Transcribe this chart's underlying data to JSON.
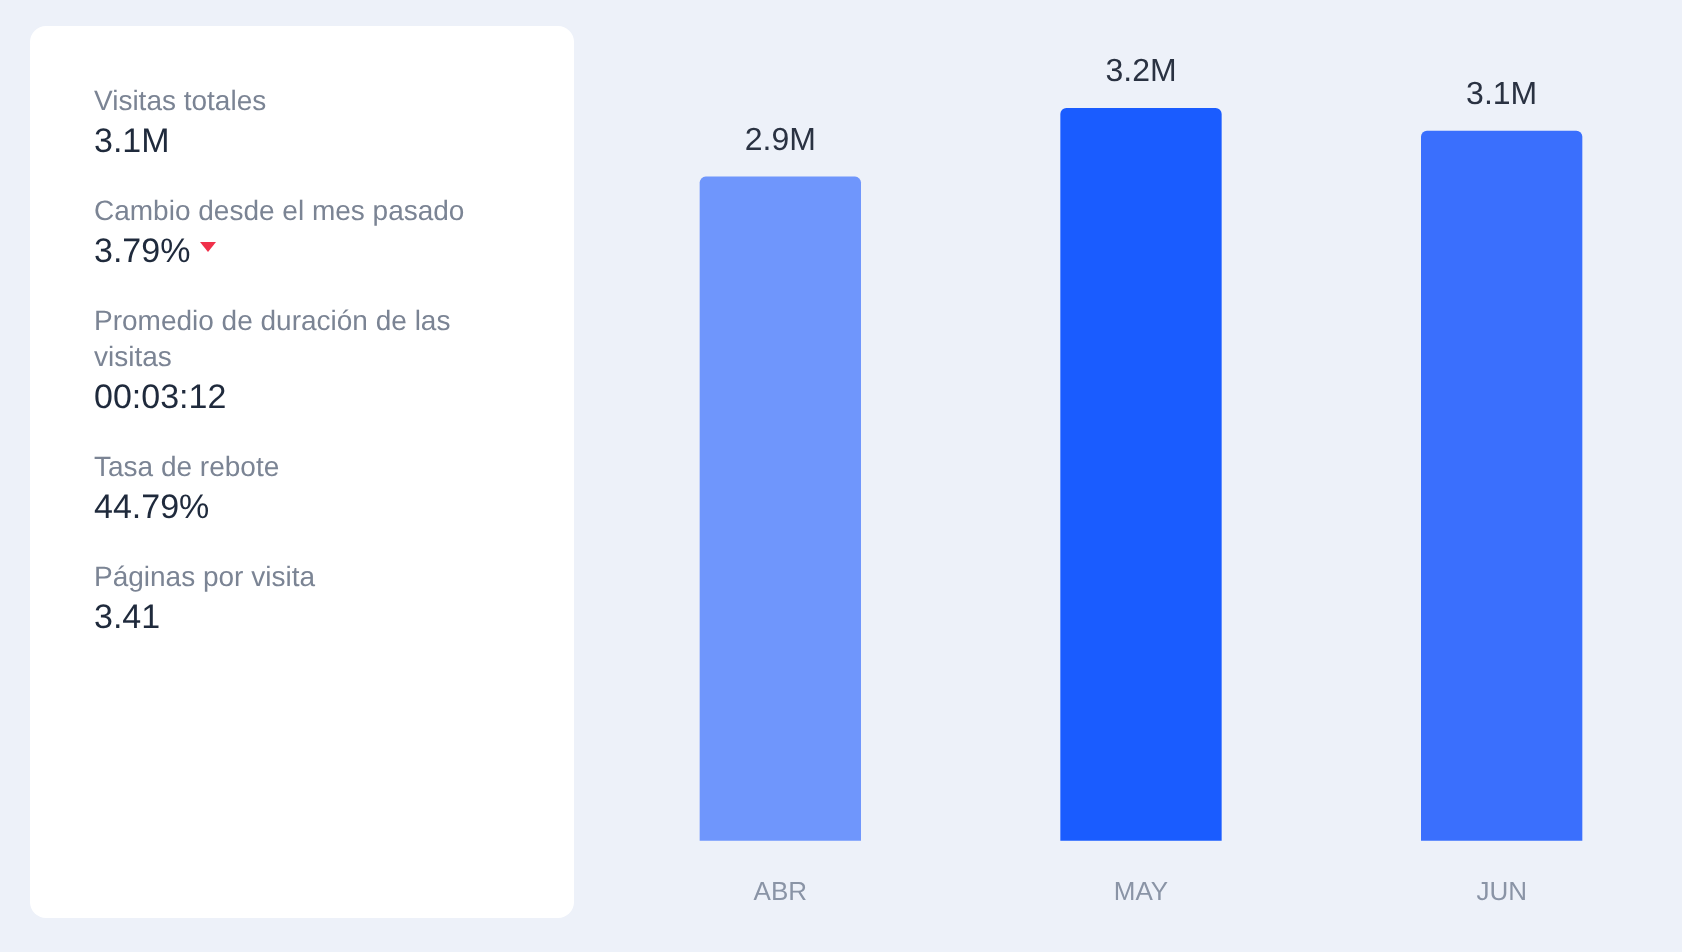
{
  "chart_data": [
    {
      "type": "other",
      "annotations": [
        "Visitas totales",
        "3.1M",
        "Cambio desde el mes pasado",
        "3.79%",
        "Promedio de duración de las visitas",
        "00:03:12",
        "Tasa de rebote",
        "44.79%",
        "Páginas por visita",
        "3.41"
      ]
    },
    {
      "type": "bar",
      "categories": [
        "ABR",
        "MAY",
        "JUN"
      ],
      "values": [
        2.9,
        3.2,
        3.1
      ],
      "colors": [
        "#6f96fc",
        "#1a5cff",
        "#3a6ffd"
      ],
      "value_labels": [
        "2.9M",
        "3.2M",
        "3.1M"
      ],
      "grid": false,
      "legend": false
    }
  ]
}
